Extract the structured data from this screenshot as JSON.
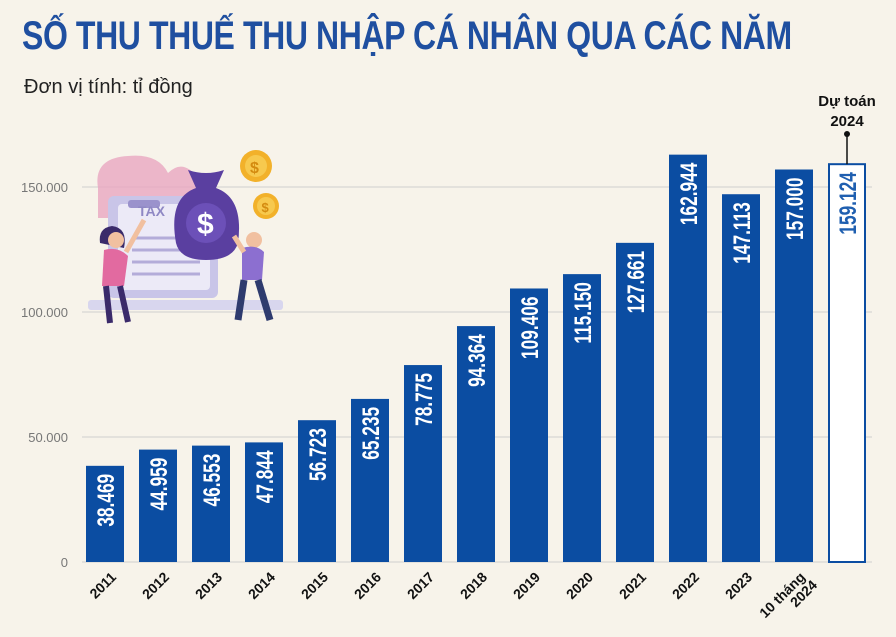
{
  "title": "SỐ THU THUẾ THU NHẬP CÁ NHÂN QUA CÁC NĂM",
  "unit": "Đơn vị tính: tỉ đồng",
  "colors": {
    "bar": "#0b4da2",
    "label": "#ffffff",
    "label_outside": "#1f5fb0",
    "title": "#1f4fa0",
    "grid": "#cfcfcf",
    "background": "#f7f3ea"
  },
  "chart_data": {
    "type": "bar",
    "categories": [
      "2011",
      "2012",
      "2013",
      "2014",
      "2015",
      "2016",
      "2017",
      "2018",
      "2019",
      "2020",
      "2021",
      "2022",
      "2023",
      "10 tháng 2024",
      "Dự toán 2024"
    ],
    "values": [
      38469,
      44959,
      46553,
      47844,
      56723,
      65235,
      78775,
      94364,
      109406,
      115150,
      127661,
      162944,
      147113,
      157000,
      159124
    ],
    "value_labels": [
      "38.469",
      "44.959",
      "46.553",
      "47.844",
      "56.723",
      "65.235",
      "78.775",
      "94.364",
      "109.406",
      "115.150",
      "127.661",
      "162.944",
      "147.113",
      "157.000",
      "159.124"
    ],
    "x_tick_labels": [
      "2011",
      "2012",
      "2013",
      "2014",
      "2015",
      "2016",
      "2017",
      "2018",
      "2019",
      "2020",
      "2021",
      "2022",
      "2023",
      [
        "10 tháng",
        "2024"
      ],
      ""
    ],
    "y_ticks": [
      0,
      50000,
      100000,
      150000
    ],
    "y_tick_labels": [
      "0",
      "50.000",
      "100.000",
      "150.000"
    ],
    "ylim": [
      0,
      170000
    ],
    "grid": true,
    "annotation": {
      "lines": [
        "Dự toán",
        "2024"
      ],
      "target": "Dự toán 2024"
    },
    "outlined_bar": "Dự toán 2024"
  }
}
